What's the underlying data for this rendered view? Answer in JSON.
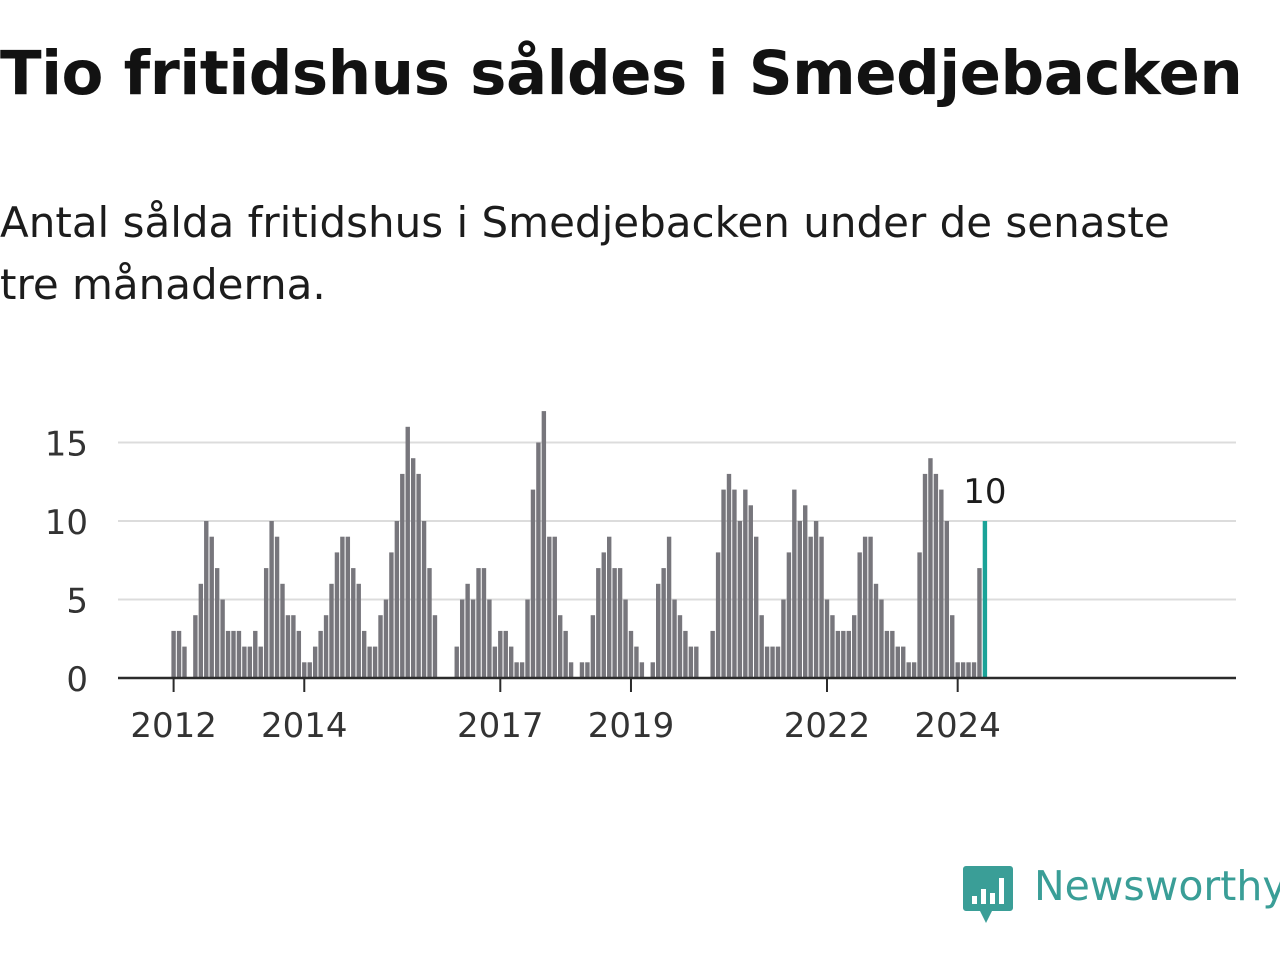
{
  "title": "Tio fritidshus såldes i Smedjebacken",
  "subtitle": "Antal sålda fritidshus i Smedjebacken under de senaste tre månaderna.",
  "brand": {
    "name": "Newsworthy",
    "icon": "bar-chart-speech-bubble-icon",
    "color": "#3a9e97"
  },
  "chart_data": {
    "type": "bar",
    "title": "",
    "xlabel": "",
    "ylabel": "",
    "ylim": [
      0,
      17
    ],
    "y_ticks": [
      "0",
      "5",
      "10",
      "15"
    ],
    "x_tick_labels": [
      "2012",
      "2014",
      "2017",
      "2019",
      "2022",
      "2024"
    ],
    "grid": true,
    "bar_color": "#77767c",
    "highlight_color": "#1aa398",
    "highlight_label": "10",
    "start_month": "2012-01",
    "end_month": "2024-04",
    "values": [
      3,
      3,
      2,
      0,
      4,
      6,
      10,
      9,
      7,
      5,
      3,
      3,
      3,
      2,
      2,
      3,
      2,
      7,
      10,
      9,
      6,
      4,
      4,
      3,
      1,
      1,
      2,
      3,
      4,
      6,
      8,
      9,
      9,
      7,
      6,
      3,
      2,
      2,
      4,
      5,
      8,
      10,
      13,
      16,
      14,
      13,
      10,
      7,
      4,
      0,
      0,
      0,
      2,
      5,
      6,
      5,
      7,
      7,
      5,
      2,
      3,
      3,
      2,
      1,
      1,
      5,
      12,
      15,
      17,
      9,
      9,
      4,
      3,
      1,
      0,
      1,
      1,
      4,
      7,
      8,
      9,
      7,
      7,
      5,
      3,
      2,
      1,
      0,
      1,
      6,
      7,
      9,
      5,
      4,
      3,
      2,
      2,
      0,
      0,
      3,
      8,
      12,
      13,
      12,
      10,
      12,
      11,
      9,
      4,
      2,
      2,
      2,
      5,
      8,
      12,
      10,
      11,
      9,
      10,
      9,
      5,
      4,
      3,
      3,
      3,
      4,
      8,
      9,
      9,
      6,
      5,
      3,
      3,
      2,
      2,
      1,
      1,
      8,
      13,
      14,
      13,
      12,
      10,
      4,
      1,
      1,
      1,
      1,
      7,
      10
    ]
  }
}
